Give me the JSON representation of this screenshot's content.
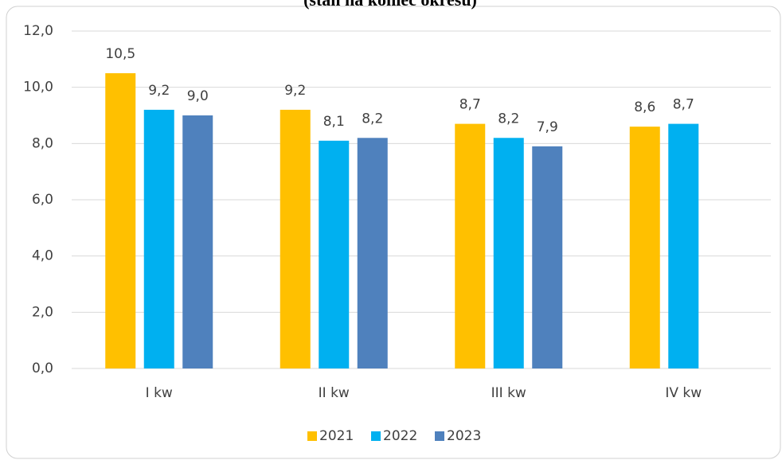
{
  "chart_data": {
    "type": "bar",
    "title": "(stan na koniec okresu)",
    "categories": [
      "I kw",
      "II kw",
      "III kw",
      "IV kw"
    ],
    "series": [
      {
        "name": "2021",
        "color": "#ffc000",
        "values": [
          10.5,
          9.2,
          8.7,
          8.6
        ],
        "value_labels": [
          "10,5",
          "9,2",
          "8,7",
          "8,6"
        ]
      },
      {
        "name": "2022",
        "color": "#00b0f0",
        "values": [
          9.2,
          8.1,
          8.2,
          8.7
        ],
        "value_labels": [
          "9,2",
          "8,1",
          "8,2",
          "8,7"
        ]
      },
      {
        "name": "2023",
        "color": "#4f81bd",
        "values": [
          9.0,
          8.2,
          7.9,
          null
        ],
        "value_labels": [
          "9,0",
          "8,2",
          "7,9",
          null
        ]
      }
    ],
    "ylim": [
      0,
      12
    ],
    "yticks": [
      {
        "value": 0,
        "label": "0,0"
      },
      {
        "value": 2,
        "label": "2,0"
      },
      {
        "value": 4,
        "label": "4,0"
      },
      {
        "value": 6,
        "label": "6,0"
      },
      {
        "value": 8,
        "label": "8,0"
      },
      {
        "value": 10,
        "label": "10,0"
      },
      {
        "value": 12,
        "label": "12,0"
      }
    ],
    "grid": true,
    "legend": "bottom"
  }
}
